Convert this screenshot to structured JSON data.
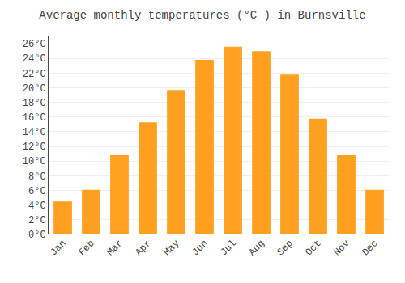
{
  "chart_data": {
    "type": "bar",
    "title": "Average monthly temperatures (°C ) in Burnsville",
    "categories": [
      "Jan",
      "Feb",
      "Mar",
      "Apr",
      "May",
      "Jun",
      "Jul",
      "Aug",
      "Sep",
      "Oct",
      "Nov",
      "Dec"
    ],
    "values": [
      4.5,
      6.1,
      10.8,
      15.3,
      19.7,
      23.8,
      25.6,
      25.0,
      21.8,
      15.8,
      10.8,
      6.1
    ],
    "color": "#FFA020",
    "ylim": [
      0,
      27
    ],
    "yticks": [
      {
        "value": 0,
        "label": "0°C"
      },
      {
        "value": 2,
        "label": "2°C"
      },
      {
        "value": 4,
        "label": "4°C"
      },
      {
        "value": 6,
        "label": "6°C"
      },
      {
        "value": 8,
        "label": "8°C"
      },
      {
        "value": 10,
        "label": "10°C"
      },
      {
        "value": 12,
        "label": "12°C"
      },
      {
        "value": 14,
        "label": "14°C"
      },
      {
        "value": 16,
        "label": "16°C"
      },
      {
        "value": 18,
        "label": "18°C"
      },
      {
        "value": 20,
        "label": "20°C"
      },
      {
        "value": 22,
        "label": "22°C"
      },
      {
        "value": 24,
        "label": "24°C"
      },
      {
        "value": 26,
        "label": "26°C"
      }
    ],
    "grid": true
  }
}
